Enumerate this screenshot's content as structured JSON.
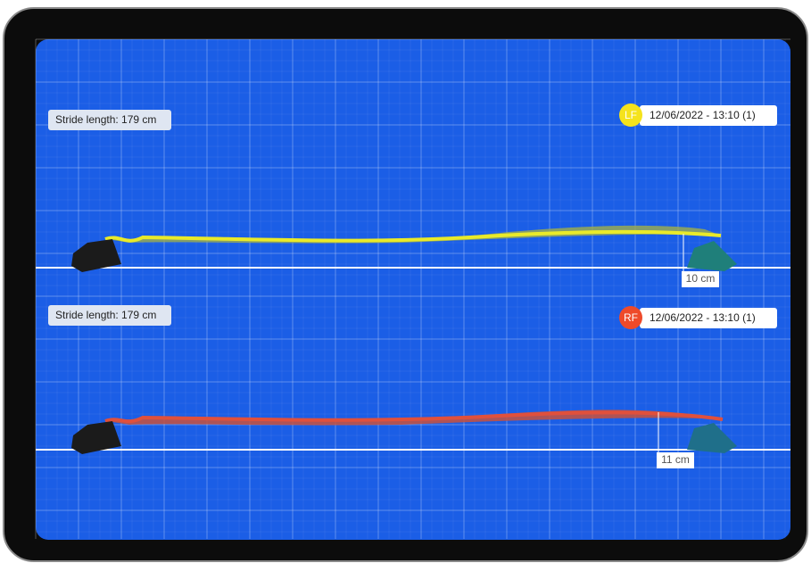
{
  "panels": [
    {
      "stride_label": "Stride length: 179 cm",
      "badge": "LF",
      "date": "12/06/2022 - 13:10 (1)",
      "height_label": "10 cm"
    },
    {
      "stride_label": "Stride length: 179 cm",
      "badge": "RF",
      "date": "12/06/2022 - 13:10 (1)",
      "height_label": "11 cm"
    }
  ]
}
